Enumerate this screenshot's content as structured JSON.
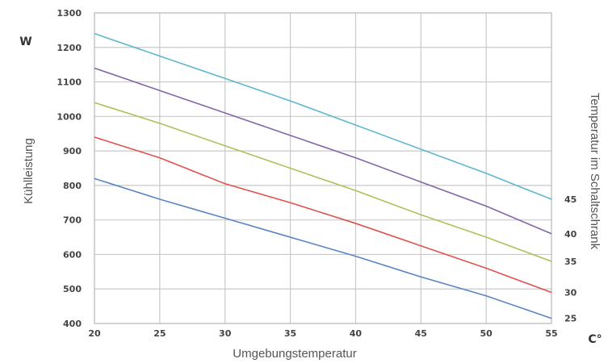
{
  "chart_data": {
    "type": "line",
    "xlabel": "Umgebungstemperatur",
    "ylabel": "Kühlleistung",
    "y2label": "Temperatur im Schaltschrank",
    "y_unit": "W",
    "x_unit": "C°",
    "xlim": [
      20,
      55
    ],
    "ylim": [
      400,
      1300
    ],
    "x_ticks": [
      20,
      25,
      30,
      35,
      40,
      45,
      50,
      55
    ],
    "y_ticks": [
      400,
      500,
      600,
      700,
      800,
      900,
      1000,
      1100,
      1200,
      1300
    ],
    "grid": true,
    "x": [
      20,
      25,
      30,
      35,
      40,
      45,
      50,
      55
    ],
    "series": [
      {
        "name": "25",
        "color": "#5b84c4",
        "values": [
          820,
          760,
          705,
          650,
          595,
          535,
          480,
          415
        ]
      },
      {
        "name": "30",
        "color": "#e0524f",
        "values": [
          940,
          880,
          805,
          750,
          690,
          625,
          560,
          490
        ]
      },
      {
        "name": "35",
        "color": "#a9c25a",
        "values": [
          1040,
          980,
          915,
          850,
          785,
          715,
          650,
          580
        ]
      },
      {
        "name": "40",
        "color": "#8466a8",
        "values": [
          1140,
          1075,
          1010,
          945,
          880,
          810,
          740,
          660
        ]
      },
      {
        "name": "45",
        "color": "#5fb7cd",
        "values": [
          1240,
          1175,
          1110,
          1045,
          975,
          905,
          835,
          760
        ]
      }
    ]
  }
}
